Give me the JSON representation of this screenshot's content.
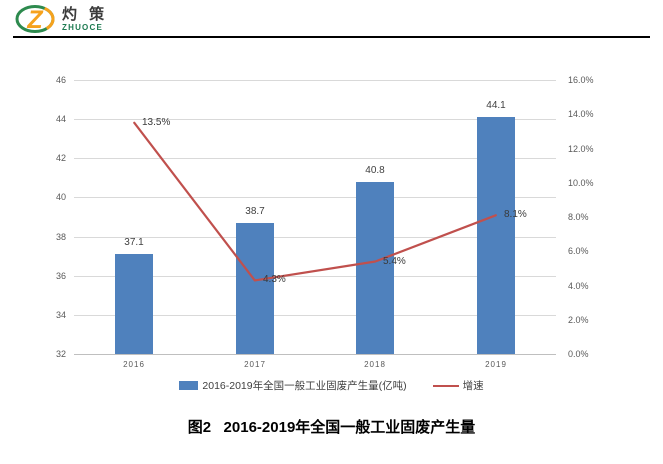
{
  "logo": {
    "name_cn": "灼 策",
    "name_en": "ZHUOCE"
  },
  "caption": "图2   2016-2019年全国一般工业固废产生量",
  "colors": {
    "bar": "#4f81bd",
    "line": "#c0504d",
    "gridline": "#d9d9d9",
    "axis_text": "#595959",
    "logo_green": "#2d8a4e",
    "logo_orange": "#f6a21d"
  },
  "chart_data": {
    "type": "bar",
    "subtype": "bar+line combo, dual axis",
    "categories": [
      "2016",
      "2017",
      "2018",
      "2019"
    ],
    "series": [
      {
        "name": "2016-2019年全国一般工业固废产生量(亿吨)",
        "type": "bar",
        "axis": "left",
        "values": [
          37.1,
          38.7,
          40.8,
          44.1
        ],
        "labels": [
          "37.1",
          "38.7",
          "40.8",
          "44.1"
        ],
        "color": "#4f81bd"
      },
      {
        "name": "增速",
        "type": "line",
        "axis": "right",
        "values": [
          13.5,
          4.3,
          5.4,
          8.1
        ],
        "labels": [
          "13.5%",
          "4.3%",
          "5.4%",
          "8.1%"
        ],
        "color": "#c0504d"
      }
    ],
    "left_axis": {
      "min": 32,
      "max": 46,
      "step": 2,
      "ticks": [
        "32",
        "34",
        "36",
        "38",
        "40",
        "42",
        "44",
        "46"
      ]
    },
    "right_axis": {
      "min": 0,
      "max": 16,
      "step": 2,
      "ticks": [
        "0.0%",
        "2.0%",
        "4.0%",
        "6.0%",
        "8.0%",
        "10.0%",
        "12.0%",
        "14.0%",
        "16.0%"
      ]
    },
    "grid": true,
    "legend_position": "bottom",
    "title": "图2   2016-2019年全国一般工业固废产生量"
  }
}
